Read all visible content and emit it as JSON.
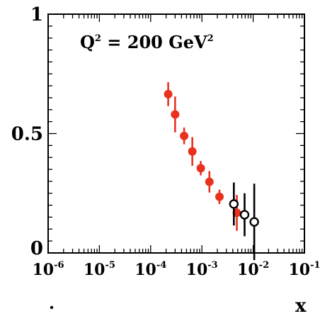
{
  "chart_data": {
    "type": "scatter",
    "annotation": {
      "text_main": "Q",
      "sup1": "2",
      "text_mid": " = 200 GeV",
      "sup2": "2"
    },
    "xlabel": "x",
    "x_scale": "log",
    "xlim": [
      1e-06,
      0.1
    ],
    "ylim": [
      0,
      1
    ],
    "x_tick_labels": [
      {
        "base": "10",
        "exp": "-6",
        "value": 1e-06
      },
      {
        "base": "10",
        "exp": "-5",
        "value": 1e-05
      },
      {
        "base": "10",
        "exp": "-4",
        "value": 0.0001
      },
      {
        "base": "10",
        "exp": "-3",
        "value": 0.001
      },
      {
        "base": "10",
        "exp": "-2",
        "value": 0.01
      },
      {
        "base": "10",
        "exp": "-1",
        "value": 0.1
      }
    ],
    "y_tick_labels": [
      {
        "text": "0",
        "value": 0
      },
      {
        "text": "0.5",
        "value": 0.5
      },
      {
        "text": "1",
        "value": 1
      }
    ],
    "series": [
      {
        "marker": "filled-circle",
        "color": "#e8321e",
        "points": [
          {
            "x": 0.00022,
            "y": 0.665,
            "err": 0.05
          },
          {
            "x": 0.0003,
            "y": 0.58,
            "err": 0.075
          },
          {
            "x": 0.00045,
            "y": 0.49,
            "err": 0.035
          },
          {
            "x": 0.00065,
            "y": 0.425,
            "err": 0.06
          },
          {
            "x": 0.00095,
            "y": 0.355,
            "err": 0.03
          },
          {
            "x": 0.0014,
            "y": 0.298,
            "err": 0.045
          },
          {
            "x": 0.0022,
            "y": 0.235,
            "err": 0.03
          },
          {
            "x": 0.0048,
            "y": 0.168,
            "err": 0.075
          }
        ]
      },
      {
        "marker": "open-circle",
        "color": "#000000",
        "points": [
          {
            "x": 0.0042,
            "y": 0.205,
            "err": 0.09
          },
          {
            "x": 0.0068,
            "y": 0.16,
            "err": 0.09
          },
          {
            "x": 0.0105,
            "y": 0.13,
            "err": 0.16
          }
        ]
      }
    ]
  }
}
